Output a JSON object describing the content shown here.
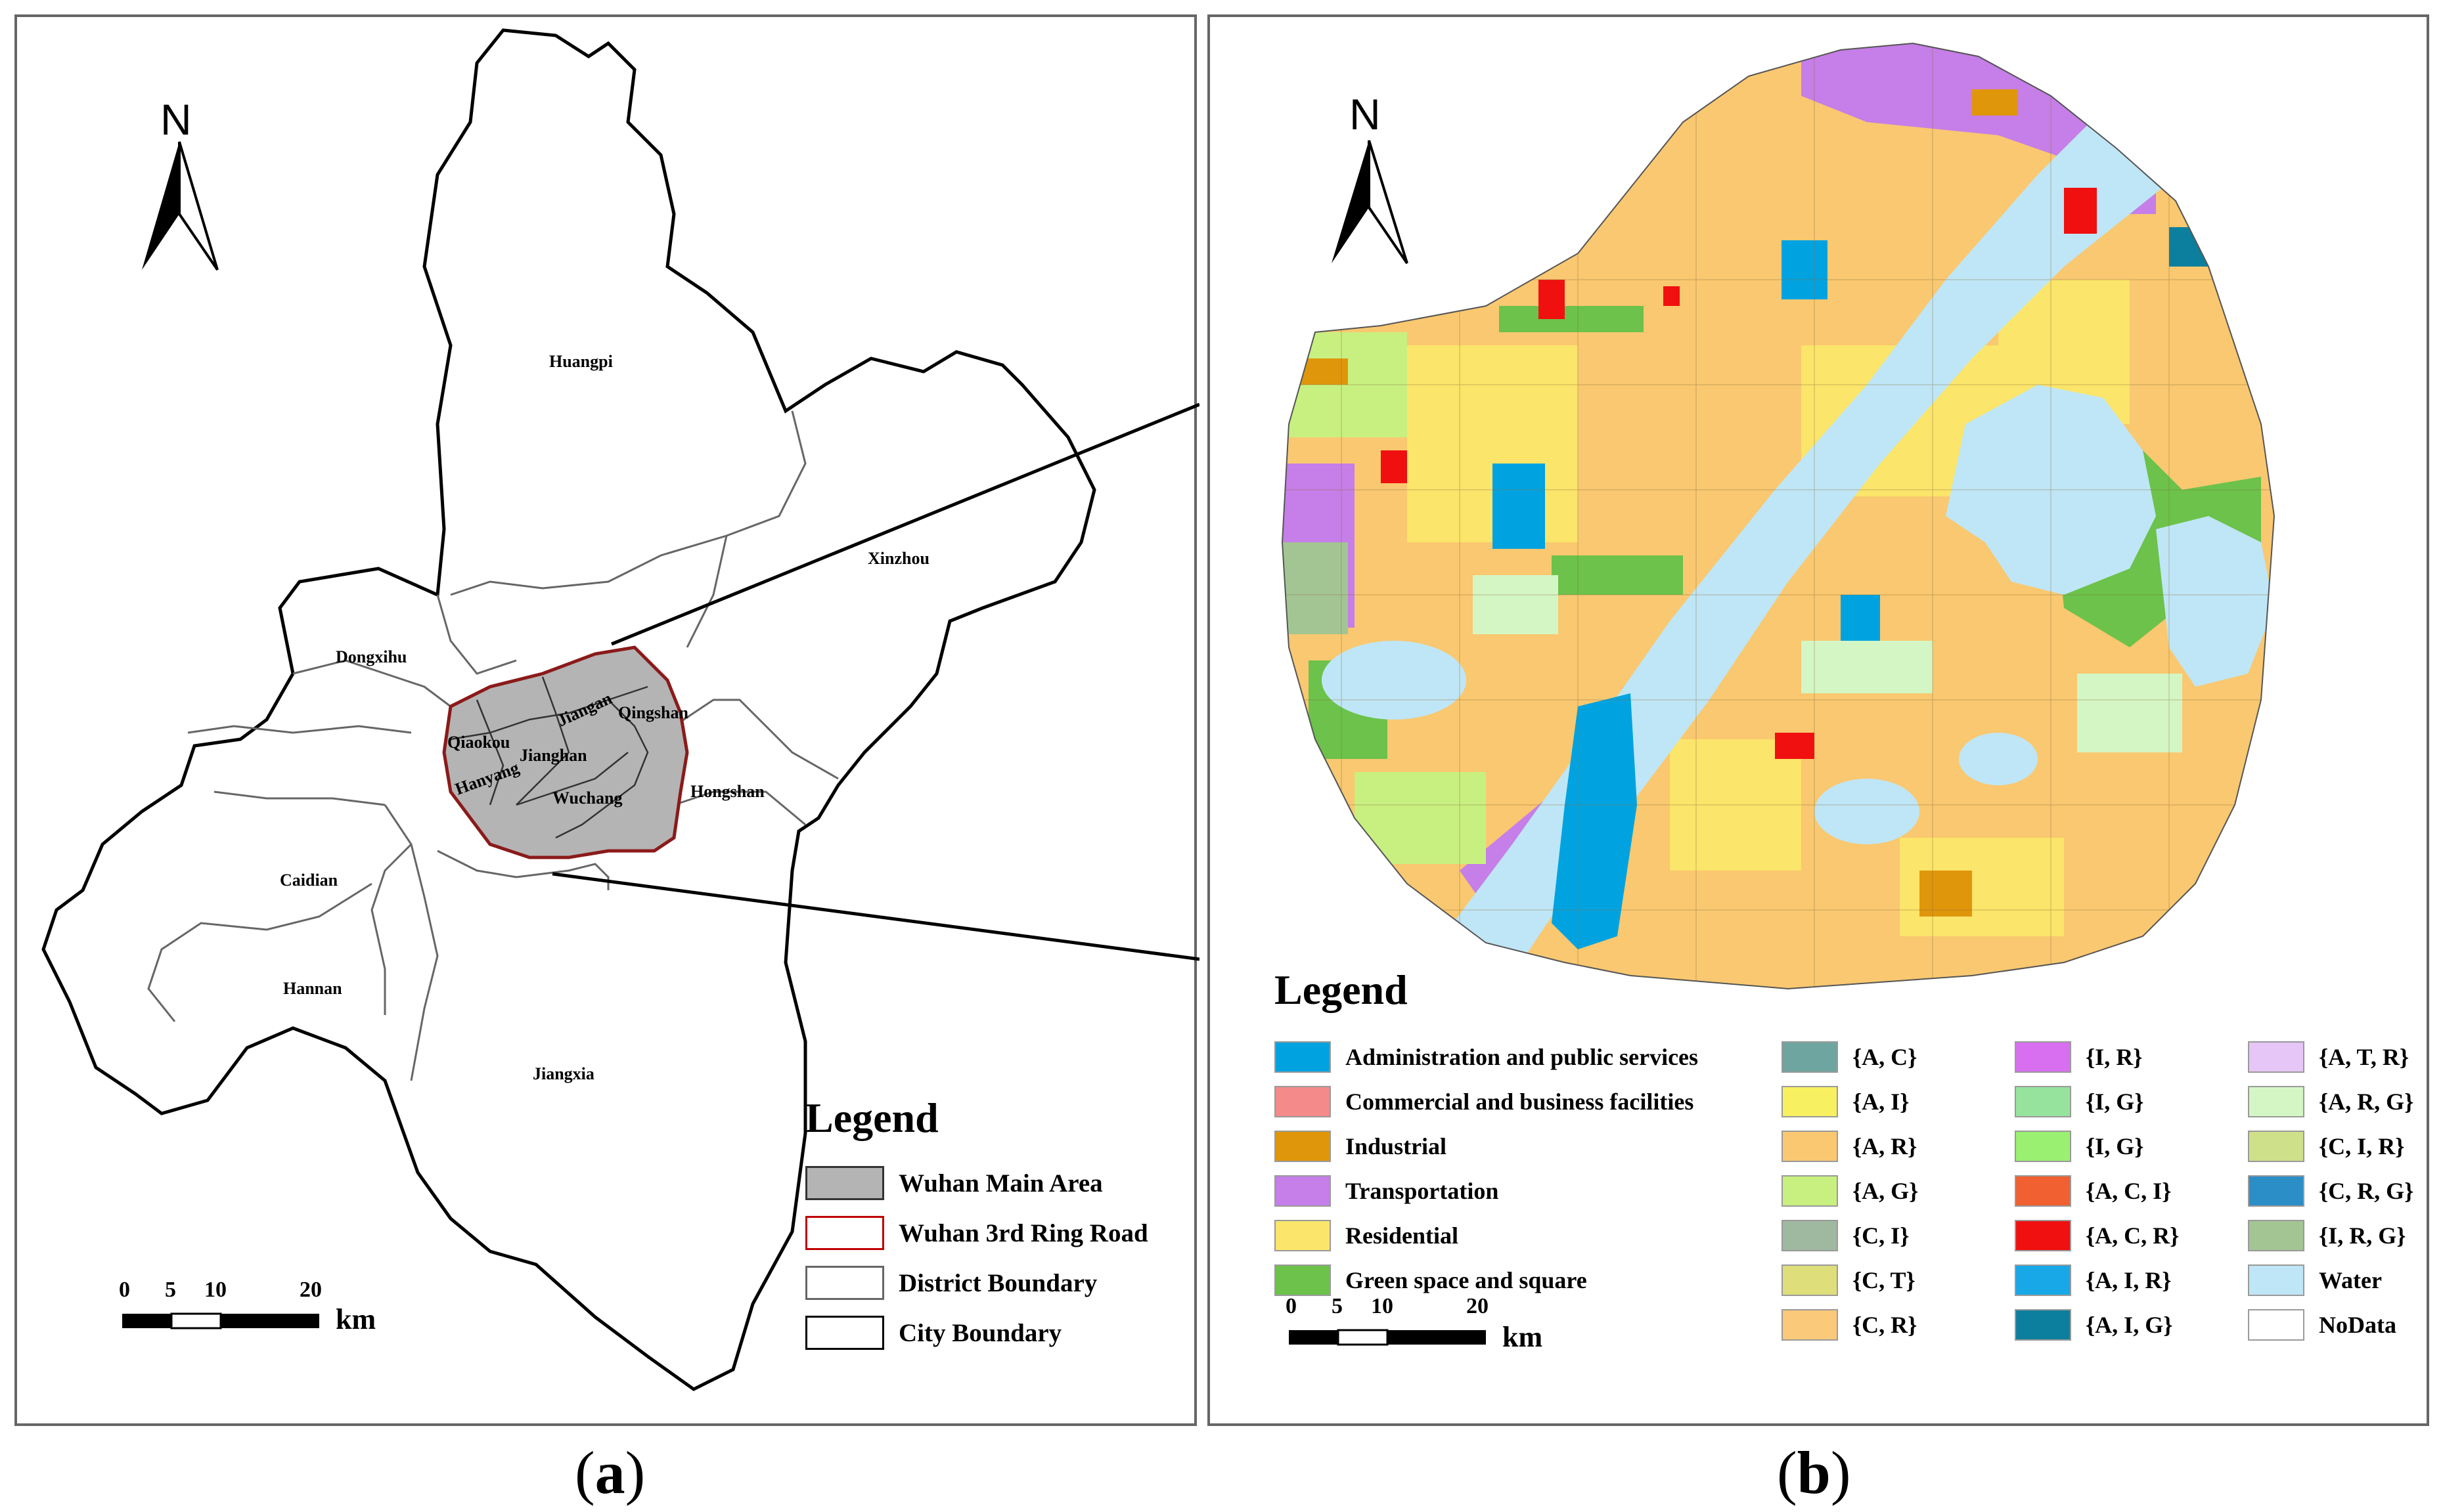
{
  "panel_a": {
    "label_open": "(",
    "label_letter": "a",
    "label_close": ")",
    "north": "N",
    "districts": {
      "huangpi": "Huangpi",
      "xinzhou": "Xinzhou",
      "dongxihu": "Dongxihu",
      "jiangan": "Jiangan",
      "qingshan": "Qingshan",
      "qiaokou": "Qiaokou",
      "jianghan": "Jianghan",
      "hanyang": "Hanyang",
      "wuchang": "Wuchang",
      "hongshan": "Hongshan",
      "caidian": "Caidian",
      "hannan": "Hannan",
      "jiangxia": "Jiangxia"
    },
    "legend": {
      "title": "Legend",
      "items": [
        {
          "label": "Wuhan Main Area",
          "fill": "#b4b4b4",
          "stroke": "#333333"
        },
        {
          "label": "Wuhan 3rd Ring Road",
          "fill": "#ffffff",
          "stroke": "#c00000"
        },
        {
          "label": "District Boundary",
          "fill": "#ffffff",
          "stroke": "#666666"
        },
        {
          "label": "City Boundary",
          "fill": "#ffffff",
          "stroke": "#000000"
        }
      ]
    },
    "scale": {
      "ticks": [
        "0",
        "5",
        "10",
        "20"
      ],
      "unit": "km"
    }
  },
  "panel_b": {
    "label_open": "(",
    "label_letter": "b",
    "label_close": ")",
    "north": "N",
    "legend": {
      "title": "Legend",
      "col1": [
        {
          "label": "Administration and public services",
          "color": "#00a3e0"
        },
        {
          "label": "Commercial and business facilities",
          "color": "#f48a8a"
        },
        {
          "label": "Industrial",
          "color": "#e0960a"
        },
        {
          "label": "Transportation",
          "color": "#c67ee8"
        },
        {
          "label": "Residential",
          "color": "#fbe56a"
        },
        {
          "label": "Green space and square",
          "color": "#6cc24a"
        }
      ],
      "col2": [
        {
          "label": "{A, C}",
          "color": "#6fa5a0"
        },
        {
          "label": "{A, I}",
          "color": "#f7f060"
        },
        {
          "label": "{A, R}",
          "color": "#f9c870"
        },
        {
          "label": "{A, G}",
          "color": "#c8f080"
        },
        {
          "label": "{C, I}",
          "color": "#9fb8a0"
        },
        {
          "label": "{C, T}",
          "color": "#dede7a"
        },
        {
          "label": "{C, R}",
          "color": "#fac97a"
        }
      ],
      "col3": [
        {
          "label": "{I, R}",
          "color": "#d76ff0"
        },
        {
          "label": "{I, G}",
          "color": "#96e39e"
        },
        {
          "label": "{I, G}",
          "color": "#9af070"
        },
        {
          "label": "{A, C, I}",
          "color": "#f06030"
        },
        {
          "label": "{A, C, R}",
          "color": "#f01010"
        },
        {
          "label": "{A, I, R}",
          "color": "#18a8e8"
        },
        {
          "label": "{A, I, G}",
          "color": "#0d7f9e"
        }
      ],
      "col4": [
        {
          "label": "{A, T, R}",
          "color": "#e6c6f6"
        },
        {
          "label": "{A, R, G}",
          "color": "#d4f6c4"
        },
        {
          "label": "{C, I, R}",
          "color": "#cfe08a"
        },
        {
          "label": "{C, R, G}",
          "color": "#2b8ec6"
        },
        {
          "label": "{I, R, G}",
          "color": "#a3c593"
        },
        {
          "label": "Water",
          "color": "#bfe6f6"
        },
        {
          "label": "NoData",
          "color": "#ffffff"
        }
      ]
    },
    "scale": {
      "ticks": [
        "0",
        "5",
        "10",
        "20"
      ],
      "unit": "km"
    }
  }
}
